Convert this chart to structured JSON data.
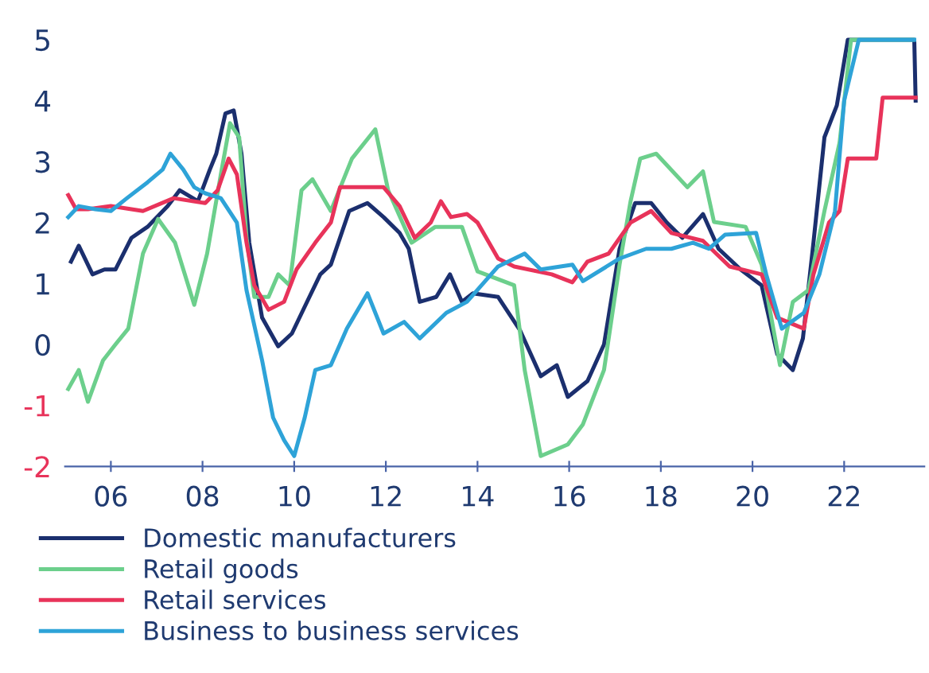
{
  "chart_data": {
    "type": "line",
    "legend": "bottom",
    "grid": false,
    "marker": "none",
    "line_style": "solid",
    "xlim": [
      2005,
      2023.75
    ],
    "ylim": [
      -2,
      5
    ],
    "xticks": [
      {
        "value": 2006,
        "label": "06"
      },
      {
        "value": 2008,
        "label": "08"
      },
      {
        "value": 2010,
        "label": "10"
      },
      {
        "value": 2012,
        "label": "12"
      },
      {
        "value": 2014,
        "label": "14"
      },
      {
        "value": 2016,
        "label": "16"
      },
      {
        "value": 2018,
        "label": "18"
      },
      {
        "value": 2020,
        "label": "20"
      },
      {
        "value": 2022,
        "label": "22"
      }
    ],
    "yticks": [
      {
        "value": -2,
        "label": "-2"
      },
      {
        "value": -1,
        "label": "-1"
      },
      0,
      1,
      2,
      3,
      4,
      5
    ],
    "series": [
      {
        "name": "Domestic manufacturers",
        "color": "#1b2f6e",
        "x": [
          2005.13,
          2005.3,
          2005.6,
          2005.86,
          2006.1,
          2006.45,
          2006.8,
          2007.24,
          2007.5,
          2007.9,
          2008.16,
          2008.3,
          2008.5,
          2008.68,
          2008.85,
          2009.02,
          2009.3,
          2009.65,
          2009.95,
          2010.23,
          2010.57,
          2010.8,
          2011.2,
          2011.6,
          2011.95,
          2012.3,
          2012.5,
          2012.74,
          2013.1,
          2013.4,
          2013.66,
          2013.9,
          2014.45,
          2014.93,
          2015.38,
          2015.73,
          2015.97,
          2016.4,
          2016.76,
          2017.1,
          2017.44,
          2017.79,
          2018.13,
          2018.47,
          2018.92,
          2019.26,
          2019.74,
          2020.2,
          2020.54,
          2020.88,
          2021.1,
          2021.33,
          2021.57,
          2021.84,
          2022.08,
          2023.53,
          2023.56
        ],
        "values": [
          1.36,
          1.62,
          1.15,
          1.23,
          1.23,
          1.75,
          1.93,
          2.27,
          2.53,
          2.35,
          2.87,
          3.13,
          3.79,
          3.84,
          3.13,
          1.67,
          0.44,
          -0.03,
          0.18,
          0.62,
          1.15,
          1.31,
          2.19,
          2.32,
          2.09,
          1.83,
          1.57,
          0.7,
          0.78,
          1.15,
          0.7,
          0.84,
          0.78,
          0.23,
          -0.52,
          -0.34,
          -0.86,
          -0.6,
          0,
          1.57,
          2.32,
          2.32,
          2,
          1.75,
          2.14,
          1.57,
          1.23,
          0.97,
          -0.16,
          -0.42,
          0.1,
          1.67,
          3.4,
          3.92,
          5,
          5,
          4
        ]
      },
      {
        "name": "Retail goods",
        "color": "#6ccf8c",
        "x": [
          2005.07,
          2005.3,
          2005.5,
          2005.83,
          2006.1,
          2006.38,
          2006.7,
          2007.03,
          2007.4,
          2007.82,
          2008.1,
          2008.4,
          2008.6,
          2008.8,
          2008.96,
          2009.13,
          2009.44,
          2009.65,
          2009.9,
          2010.16,
          2010.4,
          2010.8,
          2011.26,
          2011.77,
          2012.05,
          2012.56,
          2013.08,
          2013.66,
          2014.0,
          2014.8,
          2015.03,
          2015.38,
          2015.97,
          2016.3,
          2016.76,
          2017.1,
          2017.34,
          2017.55,
          2017.9,
          2018.58,
          2018.92,
          2019.16,
          2019.85,
          2020.2,
          2020.6,
          2020.88,
          2021.22,
          2021.57,
          2021.9,
          2022.15,
          2023.5
        ],
        "values": [
          -0.73,
          -0.42,
          -0.94,
          -0.26,
          0,
          0.26,
          1.49,
          2.06,
          1.67,
          0.65,
          1.49,
          2.79,
          3.63,
          3.4,
          1.75,
          0.78,
          0.78,
          1.15,
          0.97,
          2.53,
          2.71,
          2.19,
          3.05,
          3.53,
          2.53,
          1.67,
          1.93,
          1.93,
          1.2,
          0.97,
          -0.42,
          -1.83,
          -1.64,
          -1.31,
          -0.42,
          1.31,
          2.35,
          3.05,
          3.13,
          2.58,
          2.84,
          2.01,
          1.93,
          1.31,
          -0.34,
          0.7,
          0.89,
          2.19,
          3.31,
          5,
          5
        ]
      },
      {
        "name": "Retail services",
        "color": "#e8335a",
        "x": [
          2005.07,
          2005.24,
          2005.5,
          2006.0,
          2006.7,
          2007.37,
          2008.06,
          2008.33,
          2008.57,
          2008.75,
          2008.96,
          2009.13,
          2009.44,
          2009.78,
          2010.05,
          2010.46,
          2010.8,
          2011.0,
          2011.95,
          2012.3,
          2012.63,
          2012.98,
          2013.2,
          2013.42,
          2013.77,
          2014.0,
          2014.45,
          2014.8,
          2015.62,
          2016.07,
          2016.4,
          2016.86,
          2017.34,
          2017.79,
          2018.23,
          2018.92,
          2019.5,
          2020.2,
          2020.54,
          2021.12,
          2021.33,
          2021.67,
          2021.9,
          2022.08,
          2022.7,
          2022.84,
          2023.56
        ],
        "values": [
          2.45,
          2.22,
          2.22,
          2.27,
          2.19,
          2.4,
          2.32,
          2.53,
          3.05,
          2.79,
          1.67,
          0.97,
          0.57,
          0.7,
          1.23,
          1.67,
          2,
          2.58,
          2.58,
          2.27,
          1.75,
          2,
          2.35,
          2.09,
          2.14,
          2,
          1.41,
          1.28,
          1.15,
          1.02,
          1.36,
          1.49,
          2,
          2.19,
          1.83,
          1.7,
          1.28,
          1.15,
          0.44,
          0.26,
          1.15,
          2,
          2.19,
          3.05,
          3.05,
          4.05,
          4.05
        ]
      },
      {
        "name": "Business to business services",
        "color": "#2ea3d8",
        "x": [
          2005.07,
          2005.3,
          2005.66,
          2006.0,
          2006.35,
          2006.8,
          2007.13,
          2007.3,
          2007.58,
          2007.82,
          2008.06,
          2008.4,
          2008.75,
          2008.96,
          2009.3,
          2009.54,
          2009.78,
          2010.0,
          2010.23,
          2010.46,
          2010.8,
          2011.15,
          2011.6,
          2011.95,
          2012.4,
          2012.74,
          2013.32,
          2013.77,
          2014.45,
          2015.03,
          2015.38,
          2016.07,
          2016.3,
          2017.1,
          2017.68,
          2018.23,
          2018.7,
          2019.05,
          2019.4,
          2020.08,
          2020.3,
          2020.64,
          2021.12,
          2021.46,
          2021.8,
          2022.0,
          2022.32,
          2023.53
        ],
        "values": [
          2.09,
          2.27,
          2.22,
          2.19,
          2.4,
          2.66,
          2.87,
          3.13,
          2.87,
          2.58,
          2.48,
          2.4,
          2,
          0.89,
          -0.26,
          -1.2,
          -1.57,
          -1.83,
          -1.2,
          -0.42,
          -0.34,
          0.26,
          0.84,
          0.18,
          0.37,
          0.1,
          0.52,
          0.7,
          1.28,
          1.49,
          1.23,
          1.31,
          1.04,
          1.41,
          1.57,
          1.57,
          1.67,
          1.57,
          1.8,
          1.83,
          1.15,
          0.26,
          0.52,
          1.15,
          2.19,
          4,
          5,
          5
        ]
      }
    ]
  }
}
